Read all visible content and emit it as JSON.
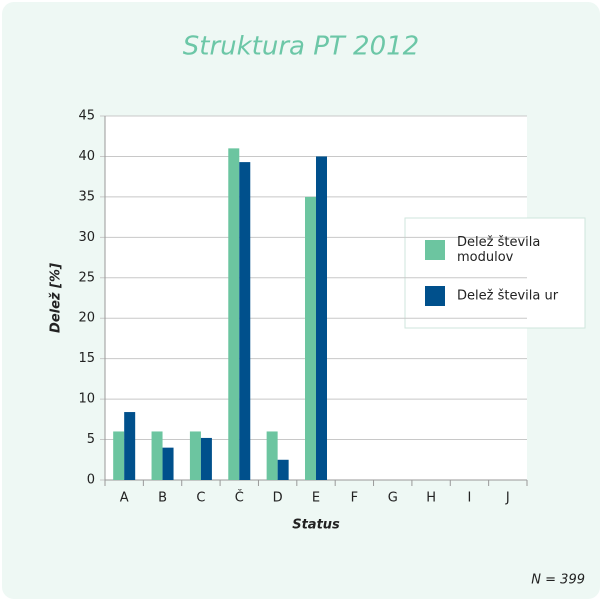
{
  "chart_data": {
    "type": "bar",
    "title": "Struktura PT 2012",
    "x_label": "Status",
    "y_label": "Delež [%]",
    "annotation": "N = 399",
    "categories": [
      "A",
      "B",
      "C",
      "Č",
      "D",
      "E",
      "F",
      "G",
      "H",
      "I",
      "J"
    ],
    "series": [
      {
        "name": "Delež števila modulov",
        "color": "#6cc5a0",
        "values": [
          6,
          6,
          6,
          41,
          6,
          35,
          0,
          0,
          0,
          0,
          0
        ]
      },
      {
        "name": "Delež števila ur",
        "color": "#00508c",
        "values": [
          8.4,
          4,
          5.2,
          39.3,
          2.5,
          40,
          0,
          0,
          0,
          0,
          0
        ]
      }
    ],
    "ylim": [
      0,
      45
    ],
    "yticks": [
      0,
      5,
      10,
      15,
      20,
      25,
      30,
      35,
      40,
      45
    ],
    "grid": true,
    "legend": "right"
  }
}
